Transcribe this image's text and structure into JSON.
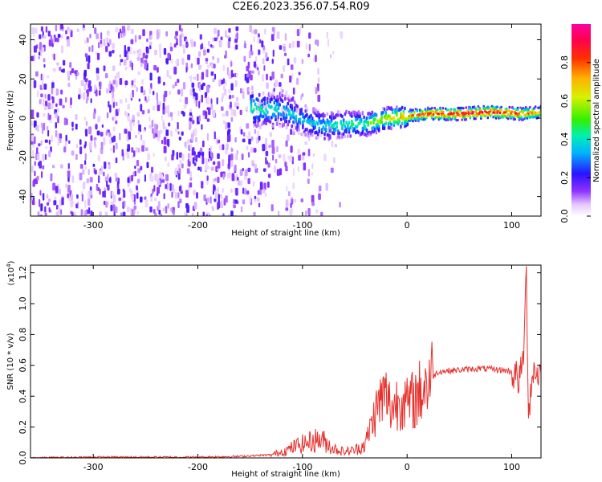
{
  "title": "C2E6.2023.356.07.54.R09",
  "chart_data": [
    {
      "type": "heatmap",
      "xlabel": "Height of straight line (km)",
      "ylabel": "Frequency (Hz)",
      "xlim": [
        -360,
        128
      ],
      "ylim": [
        -50,
        48
      ],
      "xticks": [
        -300,
        -200,
        -100,
        0,
        100
      ],
      "yticks": [
        -40,
        -20,
        0,
        20,
        40
      ],
      "colorbar": {
        "label": "Normalized spectral amplitude",
        "range": [
          0,
          1
        ],
        "ticks": [
          "0.0",
          "0.2",
          "0.4",
          "0.6",
          "0.8"
        ]
      },
      "features": [
        {
          "name": "broadband noise",
          "x": [
            -360,
            -130
          ],
          "y": [
            -50,
            48
          ],
          "level": 0.12
        },
        {
          "name": "signal track",
          "x": [
            -150,
            128
          ],
          "center": [
            [
              -150,
              5
            ],
            [
              -120,
              4
            ],
            [
              -100,
              -1
            ],
            [
              -80,
              -4
            ],
            [
              -60,
              -3
            ],
            [
              -40,
              -3
            ],
            [
              -20,
              0
            ],
            [
              0,
              1
            ],
            [
              20,
              2
            ],
            [
              50,
              2
            ],
            [
              80,
              3
            ],
            [
              110,
              2
            ],
            [
              128,
              3
            ]
          ],
          "peak_level": [
            [
              -150,
              0.45
            ],
            [
              -120,
              0.4
            ],
            [
              -100,
              0.35
            ],
            [
              -80,
              0.4
            ],
            [
              -60,
              0.45
            ],
            [
              -40,
              0.5
            ],
            [
              -20,
              0.65
            ],
            [
              0,
              0.8
            ],
            [
              20,
              0.9
            ],
            [
              60,
              0.95
            ],
            [
              90,
              0.95
            ],
            [
              110,
              0.85
            ],
            [
              128,
              0.7
            ]
          ]
        }
      ]
    },
    {
      "type": "line",
      "xlabel": "Height of straight line (km)",
      "ylabel": "SNR (10 * v/v)",
      "y_multiplier": "(x10",
      "y_exponent": "4",
      "y_multiplier_close": ")",
      "xlim": [
        -360,
        128
      ],
      "ylim": [
        0,
        1.25
      ],
      "xticks": [
        -300,
        -200,
        -100,
        0,
        100
      ],
      "yticks": [
        "0.0",
        "0.2",
        "0.4",
        "0.6",
        "0.8",
        "1.0",
        "1.2"
      ],
      "series": [
        {
          "color": "#e8302c",
          "x": [
            -360,
            -300,
            -250,
            -200,
            -160,
            -130,
            -115,
            -105,
            -95,
            -85,
            -80,
            -70,
            -60,
            -50,
            -40,
            -35,
            -30,
            -25,
            -20,
            -15,
            -10,
            -5,
            0,
            10,
            20,
            30,
            50,
            70,
            90,
            100,
            105,
            108,
            110,
            112,
            114,
            116,
            120,
            128
          ],
          "y": [
            0.0,
            0.005,
            0.005,
            0.005,
            0.01,
            0.02,
            0.05,
            0.08,
            0.1,
            0.12,
            0.11,
            0.06,
            0.04,
            0.05,
            0.09,
            0.2,
            0.3,
            0.38,
            0.4,
            0.32,
            0.36,
            0.4,
            0.34,
            0.4,
            0.5,
            0.56,
            0.57,
            0.58,
            0.57,
            0.56,
            0.52,
            0.5,
            0.62,
            0.72,
            1.25,
            0.3,
            0.56,
            0.55
          ]
        }
      ]
    }
  ]
}
